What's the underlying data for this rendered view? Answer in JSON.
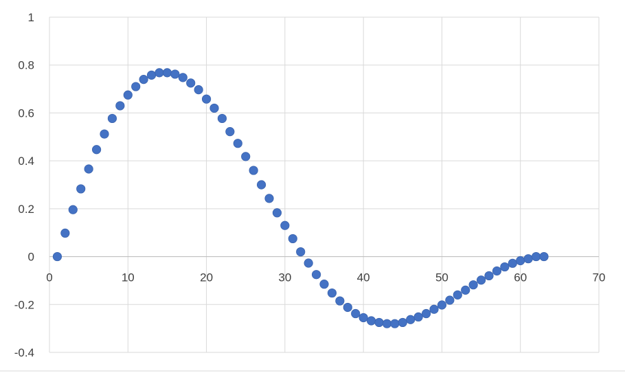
{
  "chart_data": {
    "type": "scatter",
    "title": "",
    "xlabel": "",
    "ylabel": "",
    "xlim": [
      0,
      70
    ],
    "ylim": [
      -0.4,
      1
    ],
    "x_ticks": [
      0,
      10,
      20,
      30,
      40,
      50,
      60,
      70
    ],
    "y_ticks": [
      1,
      0.8,
      0.6,
      0.4,
      0.2,
      0,
      -0.2,
      -0.4
    ],
    "x_tick_labels": [
      "0",
      "10",
      "20",
      "30",
      "40",
      "50",
      "60",
      "70"
    ],
    "y_tick_labels": [
      "1",
      "0.8",
      "0.6",
      "0.4",
      "0.2",
      "0",
      "-0.2",
      "-0.4"
    ],
    "grid": true,
    "legend": "none",
    "marker_color": "#4472c4",
    "series": [
      {
        "x": [
          1,
          2,
          3,
          4,
          5,
          6,
          7,
          8,
          9,
          10,
          11,
          12,
          13,
          14,
          15,
          16,
          17,
          18,
          19,
          20,
          21,
          22,
          23,
          24,
          25,
          26,
          27,
          28,
          29,
          30,
          31,
          32,
          33,
          34,
          35,
          36,
          37,
          38,
          39,
          40,
          41,
          42,
          43,
          44,
          45,
          46,
          47,
          48,
          49,
          50,
          51,
          52,
          53,
          54,
          55,
          56,
          57,
          58,
          59,
          60,
          61,
          62,
          63
        ],
        "y": [
          0.0,
          0.098,
          0.196,
          0.283,
          0.366,
          0.447,
          0.512,
          0.577,
          0.63,
          0.675,
          0.71,
          0.74,
          0.758,
          0.768,
          0.768,
          0.762,
          0.748,
          0.725,
          0.697,
          0.658,
          0.62,
          0.577,
          0.522,
          0.473,
          0.418,
          0.36,
          0.3,
          0.243,
          0.183,
          0.13,
          0.075,
          0.02,
          -0.027,
          -0.075,
          -0.115,
          -0.152,
          -0.185,
          -0.212,
          -0.238,
          -0.255,
          -0.268,
          -0.275,
          -0.28,
          -0.28,
          -0.275,
          -0.263,
          -0.252,
          -0.238,
          -0.22,
          -0.202,
          -0.182,
          -0.16,
          -0.14,
          -0.118,
          -0.098,
          -0.08,
          -0.06,
          -0.043,
          -0.028,
          -0.017,
          -0.009,
          0.0,
          0.0
        ]
      }
    ]
  }
}
